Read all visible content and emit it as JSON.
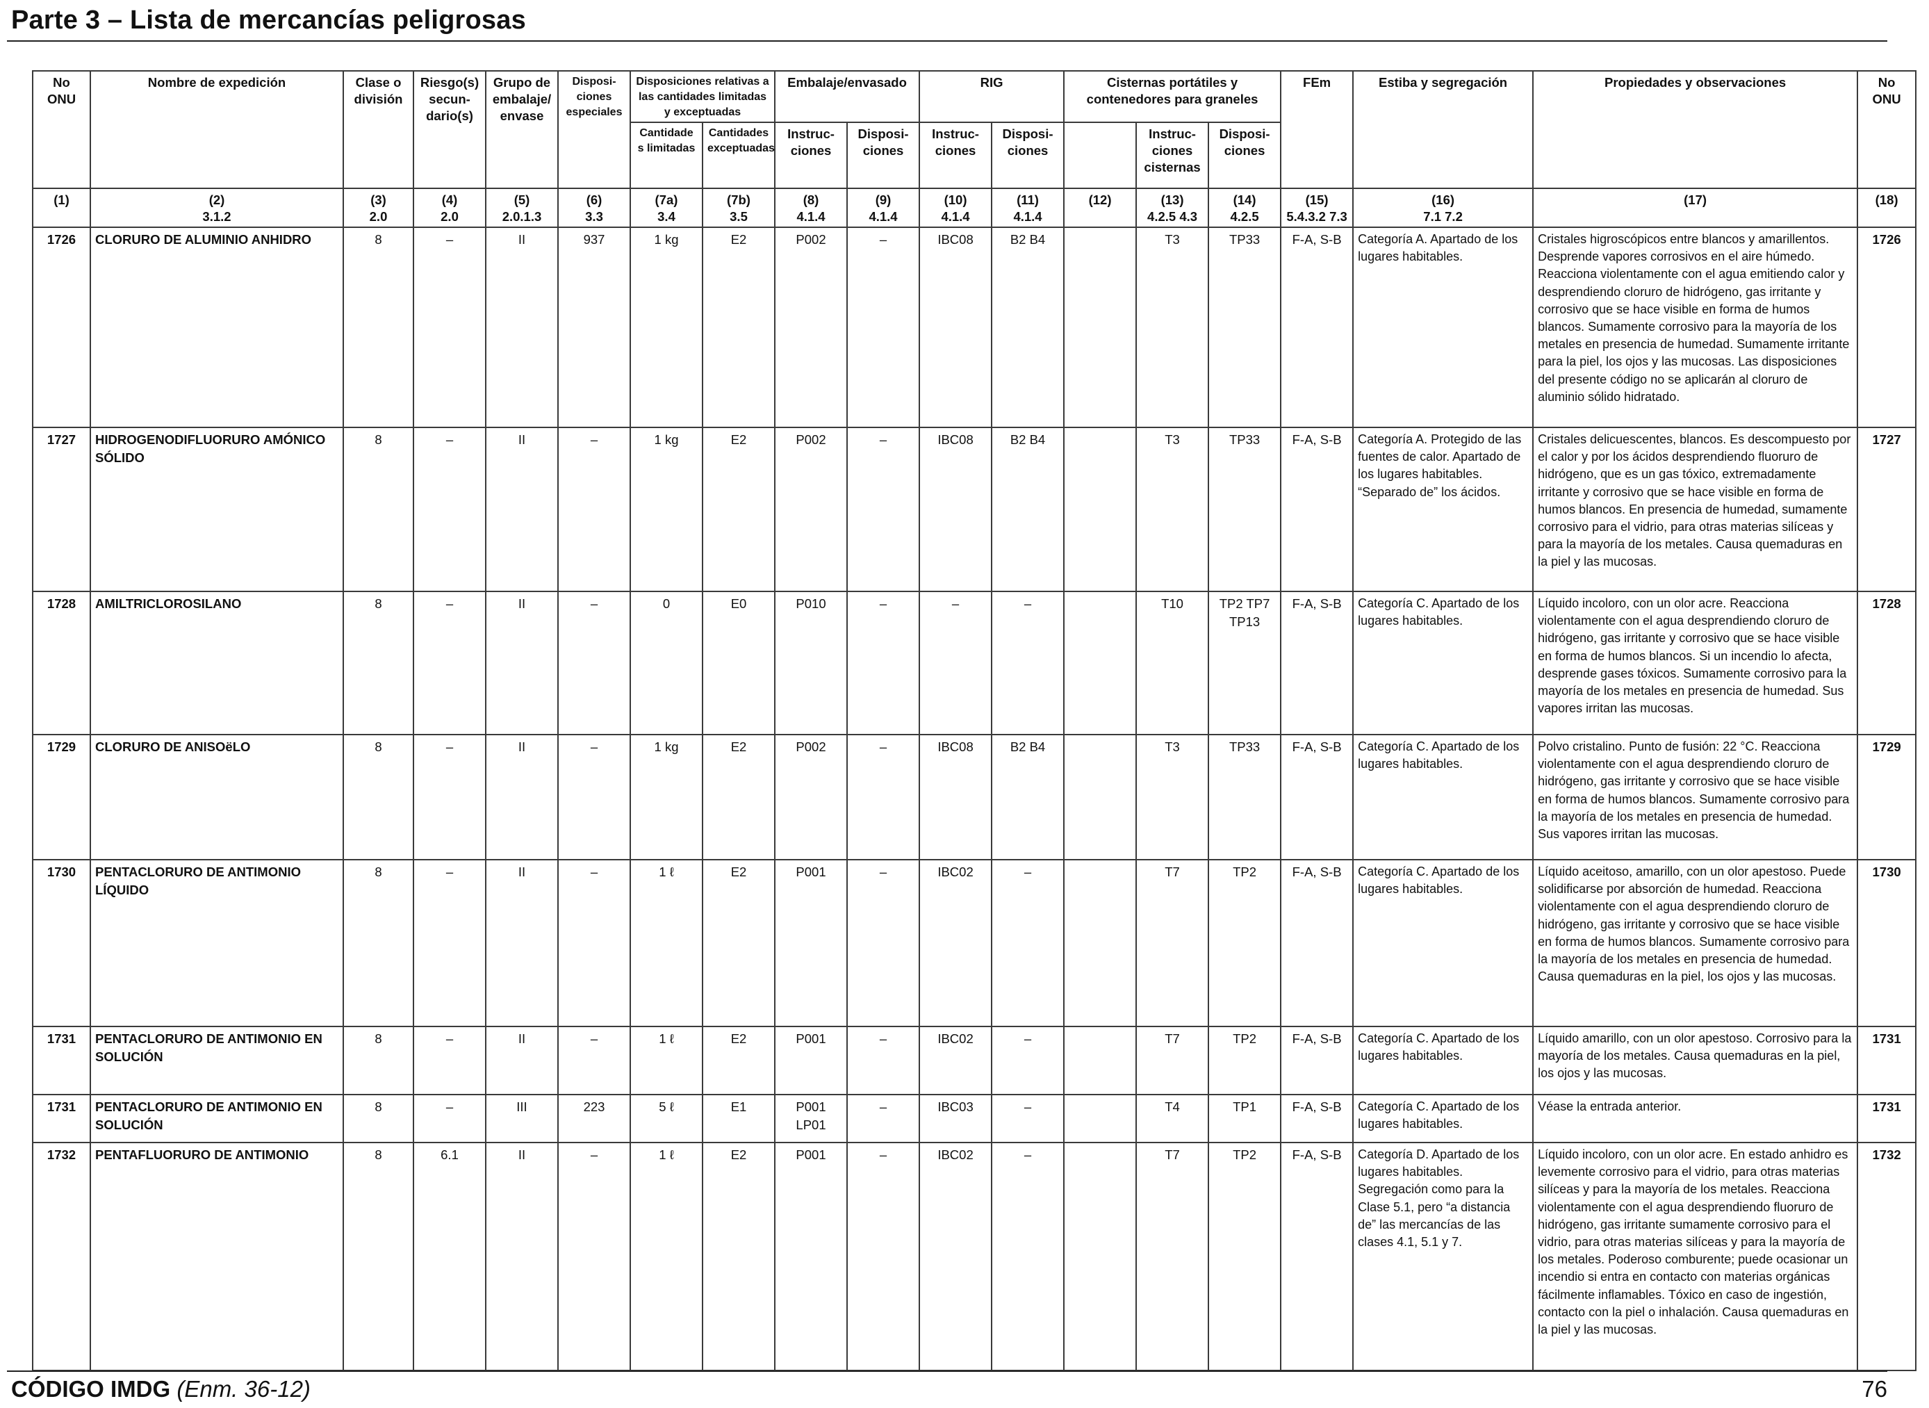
{
  "title": "Parte 3 – Lista de mercancías peligrosas",
  "footer": {
    "code": "CÓDIGO IMDG",
    "edition": "(Enm. 36-12)",
    "page": "76"
  },
  "headers": {
    "no_onu": "No ONU",
    "nombre": "Nombre de expedición",
    "clase": "Clase o división",
    "riesgo": "Riesgo(s) secun- dario(s)",
    "grupo": "Grupo de embalaje/ envase",
    "dispos_especiales": "Disposi- ciones especiales",
    "cantidades_group": "Disposiciones relativas a las cantidades limitadas y exceptuadas",
    "cant_limitadas": "Cantidade s limitadas",
    "cant_exceptuadas": "Cantidades exceptuadas",
    "embalaje_group": "Embalaje/envasado",
    "instrucciones": "Instruc- ciones",
    "disposiciones": "Disposi- ciones",
    "rig_group": "RIG",
    "cisternas_group": "Cisternas portátiles y contenedores para graneles",
    "instr_cisternas": "Instruc- ciones cisternas",
    "fem": "FEm",
    "estiba": "Estiba y segregación",
    "propiedades": "Propiedades y observaciones",
    "no_onu_r": "No ONU"
  },
  "refs": [
    [
      "(1)",
      ""
    ],
    [
      "(2)",
      "3.1.2"
    ],
    [
      "(3)",
      "2.0"
    ],
    [
      "(4)",
      "2.0"
    ],
    [
      "(5)",
      "2.0.1.3"
    ],
    [
      "(6)",
      "3.3"
    ],
    [
      "(7a)",
      "3.4"
    ],
    [
      "(7b)",
      "3.5"
    ],
    [
      "(8)",
      "4.1.4"
    ],
    [
      "(9)",
      "4.1.4"
    ],
    [
      "(10)",
      "4.1.4"
    ],
    [
      "(11)",
      "4.1.4"
    ],
    [
      "(12)",
      ""
    ],
    [
      "(13)",
      "4.2.5 4.3"
    ],
    [
      "(14)",
      "4.2.5"
    ],
    [
      "(15)",
      "5.4.3.2 7.3"
    ],
    [
      "(16)",
      "7.1 7.2"
    ],
    [
      "(17)",
      ""
    ],
    [
      "(18)",
      ""
    ]
  ],
  "rows": [
    {
      "un": "1726",
      "name": "CLORURO DE ALUMINIO ANHIDRO",
      "clase": "8",
      "riesgo": "–",
      "grupo": "II",
      "esp": "937",
      "lim": "1 kg",
      "exc": "E2",
      "instr": "P002",
      "disp": "–",
      "rig_i": "IBC08",
      "rig_d": "B2 B4",
      "c12": "",
      "cist_i": "T3",
      "cist_d": "TP33",
      "fem": "F-A, S-B",
      "stow": "Categoría A. Apartado de los lugares habitables.",
      "obs": "Cristales higroscópicos entre blancos y amarillentos. Desprende vapores corrosivos en el aire húmedo. Reacciona violentamente con el agua emitiendo calor y desprendiendo cloruro de hidrógeno, gas irritante y corrosivo que se hace visible en forma de humos blancos. Sumamente corrosivo para la mayoría de los metales en presencia de humedad. Sumamente irritante para la piel, los ojos y las mucosas. Las disposiciones del presente código no se aplicarán al cloruro de aluminio sólido hidratado.",
      "un_r": "1726"
    },
    {
      "un": "1727",
      "name": "HIDROGENODIFLUORURO AMÓNICO SÓLIDO",
      "clase": "8",
      "riesgo": "–",
      "grupo": "II",
      "esp": "–",
      "lim": "1 kg",
      "exc": "E2",
      "instr": "P002",
      "disp": "–",
      "rig_i": "IBC08",
      "rig_d": "B2 B4",
      "c12": "",
      "cist_i": "T3",
      "cist_d": "TP33",
      "fem": "F-A, S-B",
      "stow": "Categoría A.  Protegido de las fuentes de calor. Apartado de los lugares habitables. “Separado de” los ácidos.",
      "obs": "Cristales delicuescentes, blancos. Es descompuesto por el calor y por los ácidos desprendiendo fluoruro de hidrógeno, que es un gas tóxico, extremadamente irritante y corrosivo que se hace visible en forma de humos blancos. En presencia de humedad, sumamente corrosivo para el vidrio, para otras materias silíceas y para la mayoría de los metales. Causa quemaduras en la piel y las mucosas.",
      "un_r": "1727"
    },
    {
      "un": "1728",
      "name": "AMILTRICLOROSILANO",
      "clase": "8",
      "riesgo": "–",
      "grupo": "II",
      "esp": "–",
      "lim": "0",
      "exc": "E0",
      "instr": "P010",
      "disp": "–",
      "rig_i": "–",
      "rig_d": "–",
      "c12": "",
      "cist_i": "T10",
      "cist_d": "TP2 TP7 TP13",
      "fem": "F-A, S-B",
      "stow": "Categoría C. Apartado de los lugares habitables.",
      "obs": "Líquido incoloro, con un olor acre. Reacciona violentamente con el agua desprendiendo cloruro de hidrógeno, gas irritante y corrosivo que se hace visible en forma de humos blancos. Si un incendio lo afecta, desprende gases tóxicos. Sumamente corrosivo para la mayoría de los metales en presencia de humedad. Sus vapores irritan las mucosas.",
      "un_r": "1728"
    },
    {
      "un": "1729",
      "name": "CLORURO DE ANISOëLO",
      "clase": "8",
      "riesgo": "–",
      "grupo": "II",
      "esp": "–",
      "lim": "1 kg",
      "exc": "E2",
      "instr": "P002",
      "disp": "–",
      "rig_i": "IBC08",
      "rig_d": "B2 B4",
      "c12": "",
      "cist_i": "T3",
      "cist_d": "TP33",
      "fem": "F-A, S-B",
      "stow": "Categoría C. Apartado de los lugares habitables.",
      "obs": "Polvo cristalino. Punto de fusión: 22 °C. Reacciona violentamente con el agua desprendiendo cloruro de hidrógeno, gas irritante y corrosivo que se hace visible en forma de humos blancos. Sumamente corrosivo para la mayoría de los metales en presencia de humedad. Sus vapores irritan las mucosas.",
      "un_r": "1729"
    },
    {
      "un": "1730",
      "name": "PENTACLORURO DE ANTIMONIO LÍQUIDO",
      "clase": "8",
      "riesgo": "–",
      "grupo": "II",
      "esp": "–",
      "lim": "1 ℓ",
      "exc": "E2",
      "instr": "P001",
      "disp": "–",
      "rig_i": "IBC02",
      "rig_d": "–",
      "c12": "",
      "cist_i": "T7",
      "cist_d": "TP2",
      "fem": "F-A, S-B",
      "stow": "Categoría C. Apartado de los lugares habitables.",
      "obs": "Líquido aceitoso, amarillo, con un olor apestoso. Puede solidificarse por absorción de humedad. Reacciona violentamente con el agua desprendiendo cloruro de hidrógeno, gas irritante y corrosivo que se hace visible en forma de humos blancos. Sumamente corrosivo para la mayoría de los metales en presencia de humedad. Causa quemaduras en la piel, los ojos y las mucosas.",
      "un_r": "1730"
    },
    {
      "un": "1731",
      "name": "PENTACLORURO DE ANTIMONIO EN SOLUCIÓN",
      "clase": "8",
      "riesgo": "–",
      "grupo": "II",
      "esp": "–",
      "lim": "1 ℓ",
      "exc": "E2",
      "instr": "P001",
      "disp": "–",
      "rig_i": "IBC02",
      "rig_d": "–",
      "c12": "",
      "cist_i": "T7",
      "cist_d": "TP2",
      "fem": "F-A, S-B",
      "stow": "Categoría C. Apartado de los lugares habitables.",
      "obs": "Líquido amarillo, con un olor apestoso. Corrosivo para la mayoría de los metales. Causa quemaduras en la piel, los ojos y las mucosas.",
      "un_r": "1731"
    },
    {
      "un": "1731",
      "name": "PENTACLORURO DE ANTIMONIO EN SOLUCIÓN",
      "clase": "8",
      "riesgo": "–",
      "grupo": "III",
      "esp": "223",
      "lim": "5 ℓ",
      "exc": "E1",
      "instr": "P001 LP01",
      "disp": "–",
      "rig_i": "IBC03",
      "rig_d": "–",
      "c12": "",
      "cist_i": "T4",
      "cist_d": "TP1",
      "fem": "F-A, S-B",
      "stow": "Categoría C. Apartado de los lugares habitables.",
      "obs": "Véase la entrada anterior.",
      "un_r": "1731"
    },
    {
      "un": "1732",
      "name": "PENTAFLUORURO DE ANTIMONIO",
      "clase": "8",
      "riesgo": "6.1",
      "grupo": "II",
      "esp": "–",
      "lim": "1 ℓ",
      "exc": "E2",
      "instr": "P001",
      "disp": "–",
      "rig_i": "IBC02",
      "rig_d": "–",
      "c12": "",
      "cist_i": "T7",
      "cist_d": "TP2",
      "fem": "F-A, S-B",
      "stow": "Categoría D. Apartado de los lugares habitables. Segregación como para la Clase 5.1, pero “a distancia de” las mercancías de las clases 4.1, 5.1 y 7.",
      "obs": "Líquido incoloro, con un olor acre. En estado anhidro es levemente corrosivo para el vidrio, para otras materias silíceas y para la mayoría de los metales. Reacciona violentamente con el agua desprendiendo fluoruro de hidrógeno, gas irritante sumamente corrosivo para el vidrio, para otras materias silíceas y para la mayoría de los metales. Poderoso comburente; puede ocasionar un incendio si entra en contacto con materias orgánicas fácilmente inflamables. Tóxico en caso de ingestión, contacto con la piel o inhalación. Causa quemaduras en la piel y las mucosas.",
      "un_r": "1732"
    }
  ]
}
